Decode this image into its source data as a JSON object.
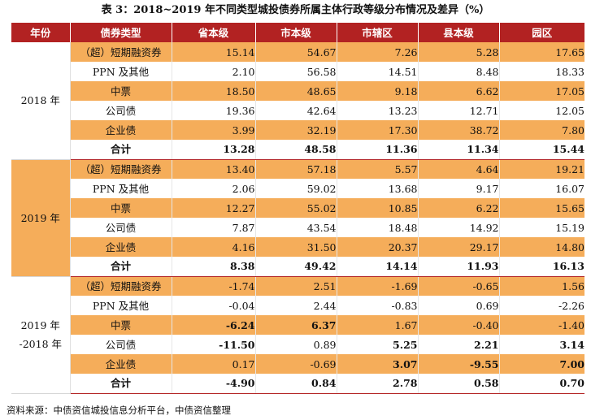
{
  "title": "表 3：2018~2019 年不同类型城投债券所属主体行政等级分布情况及差异（%）",
  "headers": [
    "年份",
    "债券类型",
    "省本级",
    "市本级",
    "市辖区",
    "县本级",
    "园区"
  ],
  "groups": [
    {
      "year": "2018 年",
      "rows": [
        {
          "type": "（超）短期融资券",
          "values": [
            "15.14",
            "54.67",
            "7.26",
            "5.28",
            "17.65"
          ]
        },
        {
          "type": "PPN 及其他",
          "values": [
            "2.10",
            "56.58",
            "14.51",
            "8.48",
            "18.33"
          ]
        },
        {
          "type": "中票",
          "values": [
            "18.50",
            "48.65",
            "9.18",
            "6.62",
            "17.05"
          ]
        },
        {
          "type": "公司债",
          "values": [
            "19.36",
            "42.64",
            "13.23",
            "12.71",
            "12.05"
          ]
        },
        {
          "type": "企业债",
          "values": [
            "3.99",
            "32.19",
            "17.30",
            "38.72",
            "7.80"
          ]
        },
        {
          "type": "合计",
          "values": [
            "13.28",
            "48.58",
            "11.36",
            "11.34",
            "15.44"
          ]
        }
      ]
    },
    {
      "year": "2019 年",
      "rows": [
        {
          "type": "（超）短期融资券",
          "values": [
            "13.40",
            "57.18",
            "5.57",
            "4.64",
            "19.21"
          ]
        },
        {
          "type": "PPN 及其他",
          "values": [
            "2.06",
            "59.02",
            "13.68",
            "9.17",
            "16.07"
          ]
        },
        {
          "type": "中票",
          "values": [
            "12.27",
            "55.02",
            "10.85",
            "6.22",
            "15.65"
          ]
        },
        {
          "type": "公司债",
          "values": [
            "7.87",
            "43.54",
            "18.48",
            "14.92",
            "15.19"
          ]
        },
        {
          "type": "企业债",
          "values": [
            "4.16",
            "31.50",
            "20.37",
            "29.17",
            "14.80"
          ]
        },
        {
          "type": "合计",
          "values": [
            "8.38",
            "49.42",
            "14.14",
            "11.93",
            "16.13"
          ]
        }
      ]
    },
    {
      "year": "2019 年",
      "year2": "-2018 年",
      "rows": [
        {
          "type": "（超）短期融资券",
          "values": [
            "-1.74",
            "2.51",
            "-1.69",
            "-0.65",
            "1.56"
          ]
        },
        {
          "type": "PPN 及其他",
          "values": [
            "-0.04",
            "2.44",
            "-0.83",
            "0.69",
            "-2.26"
          ]
        },
        {
          "type": "中票",
          "values": [
            "-6.24",
            "6.37",
            "1.67",
            "-0.40",
            "-1.40"
          ]
        },
        {
          "type": "公司债",
          "values": [
            "-11.50",
            "0.89",
            "5.25",
            "2.21",
            "3.14"
          ]
        },
        {
          "type": "企业债",
          "values": [
            "0.17",
            "-0.69",
            "3.07",
            "-9.55",
            "7.00"
          ]
        },
        {
          "type": "合计",
          "values": [
            "-4.90",
            "0.84",
            "2.78",
            "0.58",
            "0.70"
          ]
        }
      ]
    }
  ],
  "source": "资料来源：中债资信城投信息分析平台，中债资信整理",
  "colors": {
    "header": "#b22222",
    "band": "#f5ad5a"
  }
}
